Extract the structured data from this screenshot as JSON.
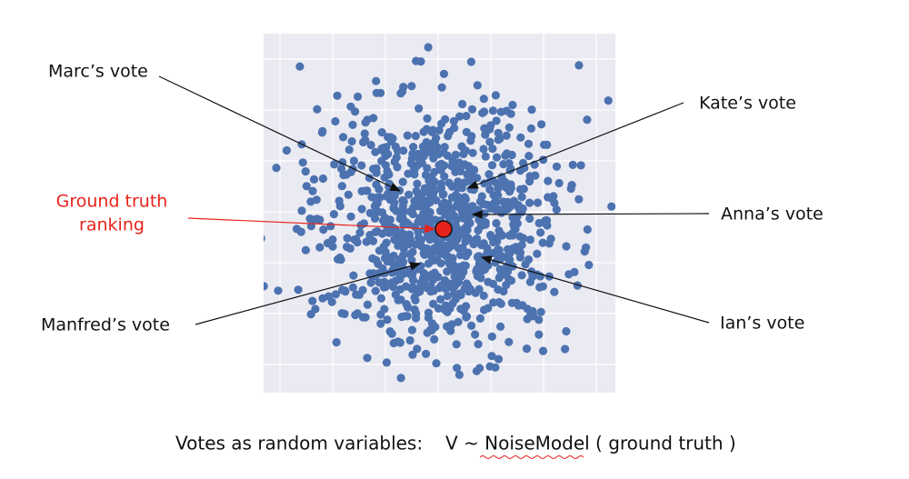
{
  "labels": {
    "marc": "Marc’s vote",
    "kate": "Kate’s vote",
    "ground_truth": [
      "Ground truth",
      "ranking"
    ],
    "anna": "Anna’s vote",
    "manfred": "Manfred’s vote",
    "ian": "Ian’s vote"
  },
  "caption": {
    "left": "Votes as random variables:",
    "right": "V ~ NoiseModel ( ground truth )"
  }
}
